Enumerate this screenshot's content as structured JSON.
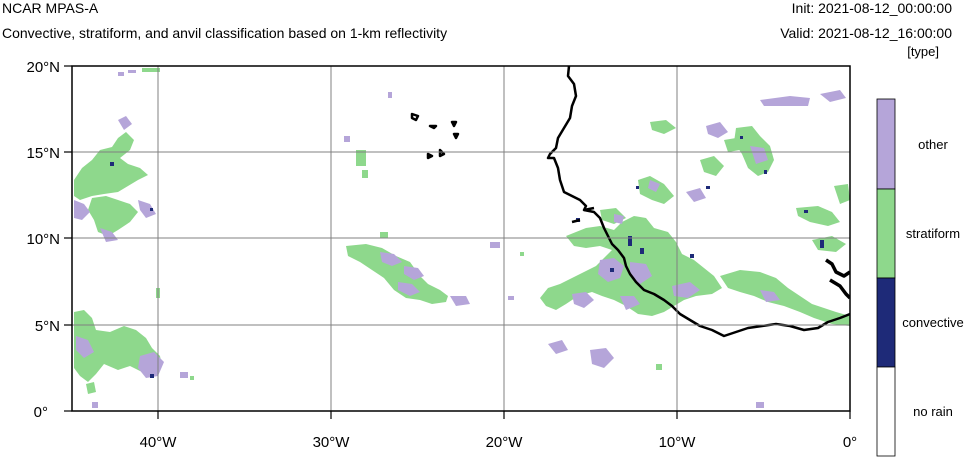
{
  "header": {
    "model": "NCAR MPAS-A",
    "description": "Convective, stratiform, and anvil classification based on 1-km reflectivity",
    "init": "Init: 2021-08-12_00:00:00",
    "valid": "Valid: 2021-08-12_16:00:00",
    "unit": "[type]"
  },
  "map": {
    "lat_labels": [
      "20°N",
      "15°N",
      "10°N",
      "5°N",
      "0°"
    ],
    "lon_labels": [
      "40°W",
      "30°W",
      "20°W",
      "10°W",
      "0°"
    ],
    "lat_range": [
      0,
      20
    ],
    "lon_range": [
      -45,
      0
    ]
  },
  "legend": {
    "items": [
      {
        "label": "other",
        "color": "#b5a5d9"
      },
      {
        "label": "stratiform",
        "color": "#8ed88c"
      },
      {
        "label": "convective",
        "color": "#1e2a78"
      },
      {
        "label": "no rain",
        "color": "#ffffff"
      }
    ]
  },
  "colors": {
    "other": "#b5a5d9",
    "stratiform": "#8ed88c",
    "convective": "#1e2a78",
    "coastline": "#000000",
    "grid": "#808080"
  }
}
